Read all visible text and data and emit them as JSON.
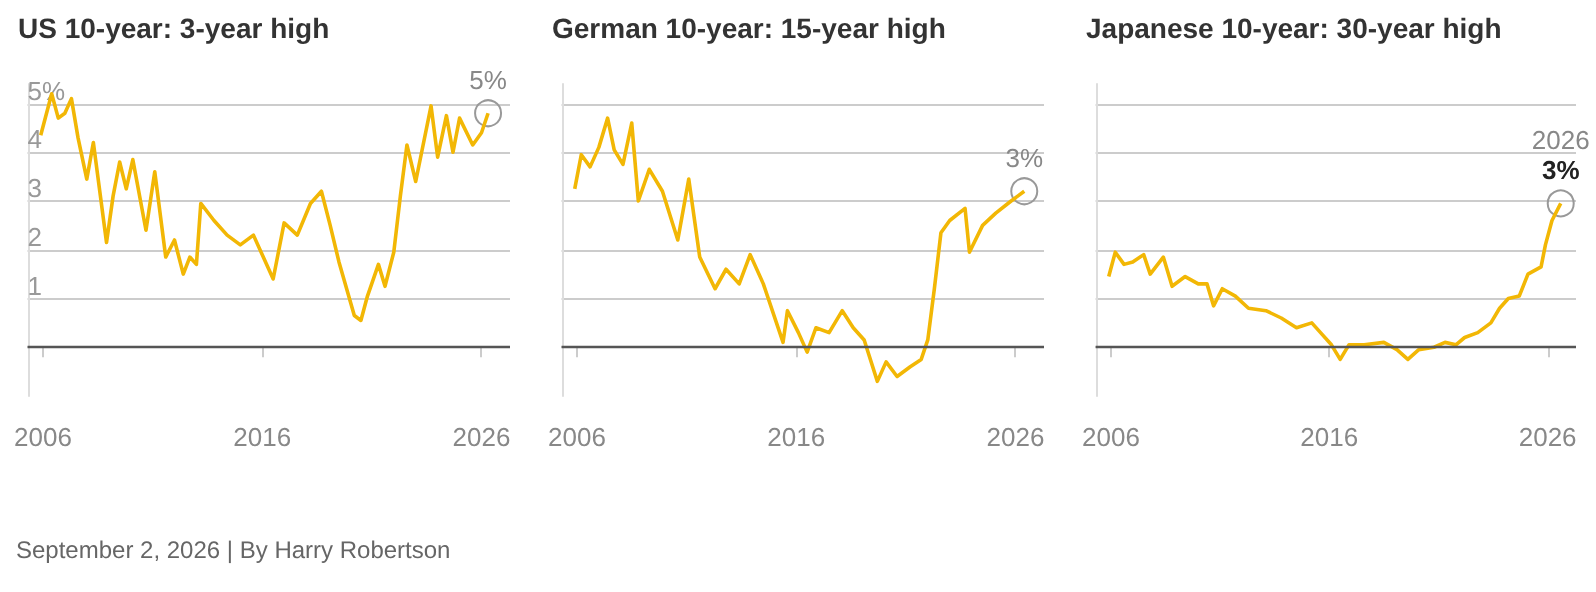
{
  "chart_data": [
    {
      "type": "line",
      "title": "US 10-year: 3-year high",
      "color": "#f2b705",
      "x": [
        2005.9,
        2006.4,
        2006.7,
        2007.0,
        2007.3,
        2007.6,
        2008.0,
        2008.3,
        2008.9,
        2009.2,
        2009.5,
        2009.8,
        2010.1,
        2010.7,
        2011.1,
        2011.6,
        2012.0,
        2012.4,
        2012.7,
        2013.0,
        2013.2,
        2013.8,
        2014.4,
        2015.0,
        2015.6,
        2016.5,
        2017.0,
        2017.6,
        2018.2,
        2018.7,
        2019.1,
        2019.5,
        2020.2,
        2020.5,
        2020.8,
        2021.3,
        2021.6,
        2022.0,
        2022.3,
        2022.6,
        2023.0,
        2023.7,
        2024.0,
        2024.4,
        2024.7,
        2025.0,
        2025.6,
        2026.0,
        2026.3
      ],
      "values": [
        4.35,
        5.2,
        4.7,
        4.8,
        5.1,
        4.3,
        3.45,
        4.2,
        2.15,
        3.1,
        3.8,
        3.25,
        3.85,
        2.4,
        3.6,
        1.85,
        2.2,
        1.5,
        1.85,
        1.7,
        2.95,
        2.6,
        2.3,
        2.1,
        2.3,
        1.4,
        2.55,
        2.3,
        2.95,
        3.2,
        2.5,
        1.75,
        0.65,
        0.55,
        1.05,
        1.7,
        1.25,
        1.95,
        3.1,
        4.15,
        3.4,
        4.95,
        3.9,
        4.75,
        4.0,
        4.7,
        4.15,
        4.4,
        4.8
      ],
      "xlim": [
        2005.3,
        2027.3
      ],
      "xticks": [
        2006,
        2016,
        2026
      ],
      "ylim": [
        -1,
        5.4
      ],
      "yticks": [
        {
          "value": 0,
          "label": null
        },
        1,
        2,
        3,
        4,
        {
          "value": 5,
          "label": "5%"
        }
      ],
      "grid": "y",
      "ref_lines": [
        {
          "axis": "y",
          "value": 0,
          "color": "#555555"
        }
      ],
      "annotations": [
        {
          "text": "5%",
          "x": 2026.3,
          "y": 4.8
        },
        "September 2, 2026 | By Harry Robertson"
      ]
    },
    {
      "type": "line",
      "title": "German 10-year: 15-year high",
      "color": "#f2b705",
      "x": [
        2005.9,
        2006.2,
        2006.6,
        2007.0,
        2007.4,
        2007.7,
        2008.1,
        2008.5,
        2008.8,
        2009.3,
        2009.9,
        2010.6,
        2011.1,
        2011.6,
        2012.3,
        2012.8,
        2013.4,
        2013.9,
        2014.5,
        2015.4,
        2015.6,
        2016.1,
        2016.5,
        2016.9,
        2017.5,
        2018.1,
        2018.6,
        2019.1,
        2019.7,
        2020.1,
        2020.6,
        2021.2,
        2021.7,
        2022.0,
        2022.3,
        2022.6,
        2023.0,
        2023.7,
        2023.9,
        2024.5,
        2025.1,
        2025.8,
        2026.4
      ],
      "values": [
        3.25,
        3.95,
        3.7,
        4.1,
        4.7,
        4.05,
        3.75,
        4.6,
        3.0,
        3.65,
        3.2,
        2.2,
        3.45,
        1.85,
        1.2,
        1.6,
        1.3,
        1.9,
        1.3,
        0.1,
        0.75,
        0.3,
        -0.1,
        0.4,
        0.3,
        0.75,
        0.4,
        0.15,
        -0.7,
        -0.3,
        -0.6,
        -0.4,
        -0.25,
        0.15,
        1.2,
        2.35,
        2.6,
        2.85,
        1.95,
        2.5,
        2.75,
        3.0,
        3.2
      ],
      "xlim": [
        2005.3,
        2027.3
      ],
      "xticks": [
        2006,
        2016,
        2026
      ],
      "ylim": [
        -1,
        5.4
      ],
      "yticks": [
        0,
        1,
        2,
        3,
        4,
        5
      ],
      "tick_labels": "x",
      "grid": "y",
      "ref_lines": [
        {
          "axis": "y",
          "value": 0,
          "color": "#555555"
        }
      ],
      "annotations": [
        {
          "text": "3%",
          "x": 2026.4,
          "y": 3.2
        }
      ]
    },
    {
      "type": "line",
      "title": "Japanese 10-year: 30-year high",
      "color": "#f2b705",
      "x": [
        2005.9,
        2006.2,
        2006.6,
        2007.0,
        2007.5,
        2007.8,
        2008.4,
        2008.8,
        2009.4,
        2010.0,
        2010.4,
        2010.7,
        2011.1,
        2011.7,
        2012.3,
        2013.1,
        2013.8,
        2014.5,
        2015.2,
        2015.6,
        2016.1,
        2016.5,
        2016.9,
        2017.6,
        2018.5,
        2019.1,
        2019.6,
        2020.1,
        2020.8,
        2021.3,
        2021.8,
        2022.2,
        2022.8,
        2023.4,
        2023.8,
        2024.2,
        2024.7,
        2025.1,
        2025.7,
        2025.9,
        2026.2,
        2026.6
      ],
      "values": [
        1.45,
        1.95,
        1.7,
        1.75,
        1.9,
        1.5,
        1.85,
        1.25,
        1.45,
        1.3,
        1.3,
        0.85,
        1.2,
        1.05,
        0.8,
        0.75,
        0.6,
        0.4,
        0.5,
        0.3,
        0.05,
        -0.25,
        0.05,
        0.05,
        0.1,
        -0.05,
        -0.25,
        -0.05,
        0,
        0.1,
        0.05,
        0.2,
        0.3,
        0.5,
        0.8,
        1.0,
        1.05,
        1.5,
        1.65,
        2.1,
        2.6,
        2.95
      ],
      "xlim": [
        2005.3,
        2027.3
      ],
      "xticks": [
        2006,
        2016,
        2026
      ],
      "ylim": [
        -1,
        5.4
      ],
      "yticks": [
        0,
        1,
        2,
        3,
        4,
        5
      ],
      "tick_labels": "x",
      "grid": "y",
      "ref_lines": [
        {
          "axis": "y",
          "value": 0,
          "color": "#555555"
        }
      ],
      "annotations": [
        {
          "text": "2026",
          "x": 2026.6,
          "y": 2.95
        },
        {
          "text": "3%",
          "x": 2026.6,
          "y": 2.95
        }
      ]
    }
  ]
}
